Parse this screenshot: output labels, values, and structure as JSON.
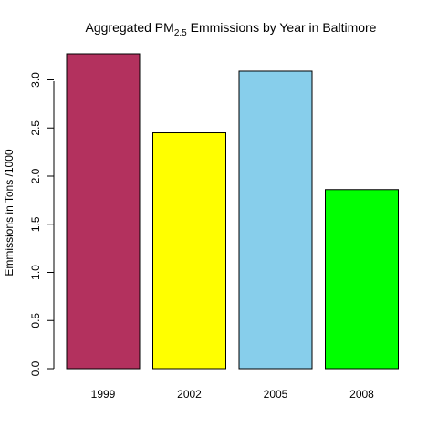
{
  "chart_data": {
    "type": "bar",
    "title_prefix": "Aggregated PM",
    "title_subscript": "2.5",
    "title_suffix": " Emmissions by Year in Baltimore",
    "xlabel": "",
    "ylabel": "Emmissions in Tons /1000",
    "categories": [
      "1999",
      "2002",
      "2005",
      "2008"
    ],
    "values": [
      3.27,
      2.45,
      3.09,
      1.86
    ],
    "colors": [
      "#b3315e",
      "#ffff00",
      "#87ceeb",
      "#00ff00"
    ],
    "yticks": [
      "0.0",
      "0.5",
      "1.0",
      "1.5",
      "2.0",
      "2.5",
      "3.0"
    ],
    "ylim": [
      0,
      3.27
    ],
    "grid": false,
    "legend": "none"
  }
}
